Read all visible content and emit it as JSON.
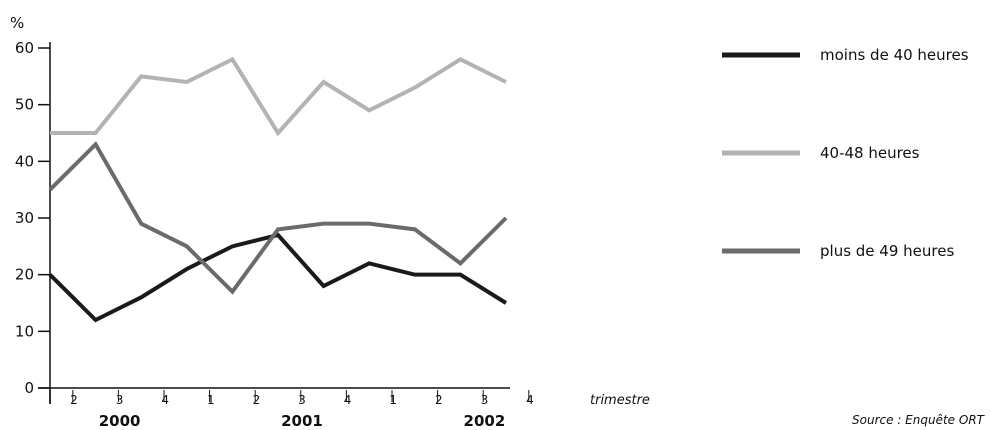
{
  "chart_data": {
    "type": "line",
    "ylabel": "%",
    "xlabel": "trimestre",
    "ylim": [
      0,
      60
    ],
    "yticks": [
      0,
      10,
      20,
      30,
      40,
      50,
      60
    ],
    "quarters": [
      "2",
      "3",
      "4",
      "1",
      "2",
      "3",
      "4",
      "1",
      "2",
      "3",
      "4"
    ],
    "years": [
      {
        "label": "2000",
        "under": "3"
      },
      {
        "label": "2001",
        "under": "3"
      },
      {
        "label": "2002",
        "under": "2"
      }
    ],
    "legend_position": "right",
    "grid": false,
    "source": "Source : Enquête ORT",
    "series": [
      {
        "name": "moins de 40 heures",
        "color": "#1a1a1a",
        "values": [
          20,
          12,
          16,
          21,
          25,
          27,
          18,
          22,
          20,
          20,
          15
        ]
      },
      {
        "name": "40-48 heures",
        "color": "#b3b3b3",
        "values": [
          45,
          45,
          55,
          54,
          58,
          45,
          54,
          49,
          53,
          58,
          54
        ]
      },
      {
        "name": "plus de 49 heures",
        "color": "#6b6b6b",
        "values": [
          35,
          43,
          29,
          25,
          17,
          28,
          29,
          29,
          28,
          22,
          30
        ]
      }
    ]
  }
}
